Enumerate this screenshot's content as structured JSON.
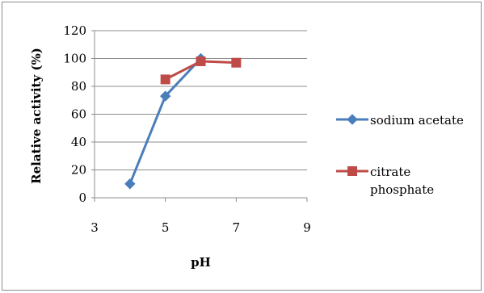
{
  "chart_data": {
    "type": "line",
    "title": "",
    "xlabel": "pH",
    "ylabel": "Relative activity (%)",
    "xlim": [
      3,
      9
    ],
    "ylim": [
      0,
      120
    ],
    "xticks": [
      "3",
      "5",
      "7",
      "9"
    ],
    "yticks": [
      "0",
      "20",
      "40",
      "60",
      "80",
      "100",
      "120"
    ],
    "grid": "horizontal",
    "legend_position": "right",
    "series": [
      {
        "name": "sodium acetate",
        "color": "#4a7ebb",
        "marker": "diamond",
        "points": [
          [
            4,
            10
          ],
          [
            5,
            73
          ],
          [
            6,
            100
          ]
        ]
      },
      {
        "name": "citrate phosphate",
        "name_lines": [
          "citrate",
          "phosphate"
        ],
        "color": "#be4b48",
        "marker": "square",
        "points": [
          [
            5,
            85
          ],
          [
            6,
            98
          ],
          [
            7,
            97
          ]
        ]
      }
    ]
  }
}
